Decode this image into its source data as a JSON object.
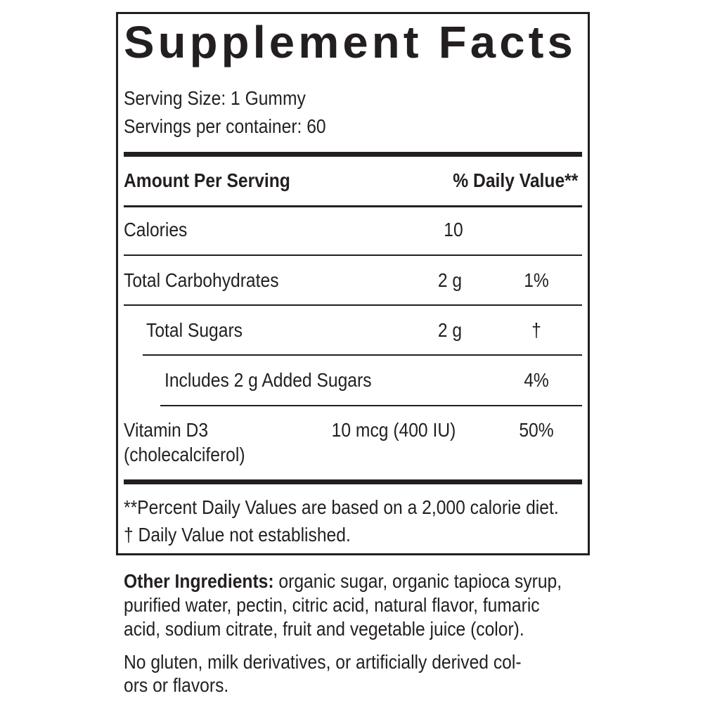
{
  "title": "Supplement Facts",
  "serving_size": "Serving Size: 1 Gummy",
  "servings_per_container": "Servings per container: 60",
  "header": {
    "amount": "Amount Per Serving",
    "daily_value": "% Daily Value**"
  },
  "rows": [
    {
      "name": "Calories",
      "amount": "10",
      "dv": ""
    },
    {
      "name": "Total Carbohydrates",
      "amount": "2 g",
      "dv": "1%"
    },
    {
      "name": "Total Sugars",
      "amount": "2 g",
      "dv": "†"
    },
    {
      "name": "Includes 2 g Added Sugars",
      "amount": "",
      "dv": "4%"
    },
    {
      "name": "Vitamin D3",
      "name2": "(cholecalciferol)",
      "amount": "10 mcg (400 IU)",
      "dv": "50%"
    }
  ],
  "footnotes": [
    "**Percent Daily Values are based on a 2,000 calorie diet.",
    "†  Daily Value not established."
  ],
  "other_ingredients": {
    "label": "Other Ingredients:",
    "lines": [
      " organic sugar, organic tapioca syrup,",
      "purified water, pectin, citric acid, natural flavor, fumaric",
      "acid, sodium citrate, fruit and vegetable juice (color)."
    ]
  },
  "allergen_lines": [
    "No gluten, milk derivatives, or artificially derived col-",
    "ors or flavors."
  ]
}
